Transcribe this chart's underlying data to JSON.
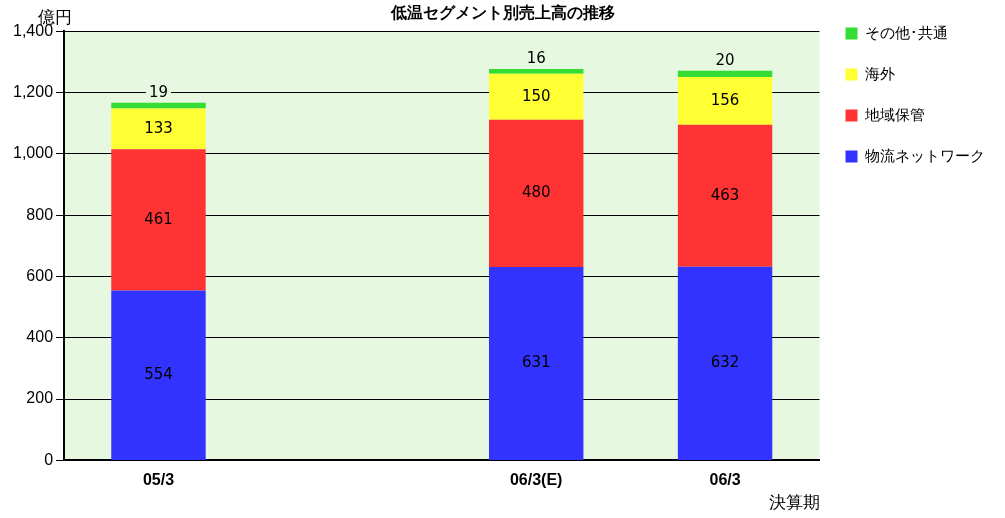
{
  "chart_data": {
    "type": "bar",
    "title": "低温セグメント別売上高の推移",
    "ylabel": "億円",
    "xlabel": "決算期",
    "categories": [
      "05/3",
      null,
      "06/3(E)",
      "06/3"
    ],
    "series": [
      {
        "name": "物流ネットワーク",
        "color": "#3333ff",
        "values": [
          554,
          null,
          631,
          632
        ]
      },
      {
        "name": "地域保管",
        "color": "#ff3333",
        "values": [
          461,
          null,
          480,
          463
        ]
      },
      {
        "name": "海外",
        "color": "#ffff33",
        "values": [
          133,
          null,
          150,
          156
        ]
      },
      {
        "name": "その他･共通",
        "color": "#33dd33",
        "values": [
          19,
          null,
          16,
          20
        ]
      }
    ],
    "stacked": true,
    "ylim": [
      0,
      1400
    ],
    "yticks": [
      0,
      200,
      400,
      600,
      800,
      {
        "value": 1000,
        "label": "1,000"
      },
      {
        "value": 1200,
        "label": "1,200"
      },
      {
        "value": 1400,
        "label": "1,400"
      }
    ],
    "grid": "y",
    "legend": "right",
    "data_labels": true
  }
}
